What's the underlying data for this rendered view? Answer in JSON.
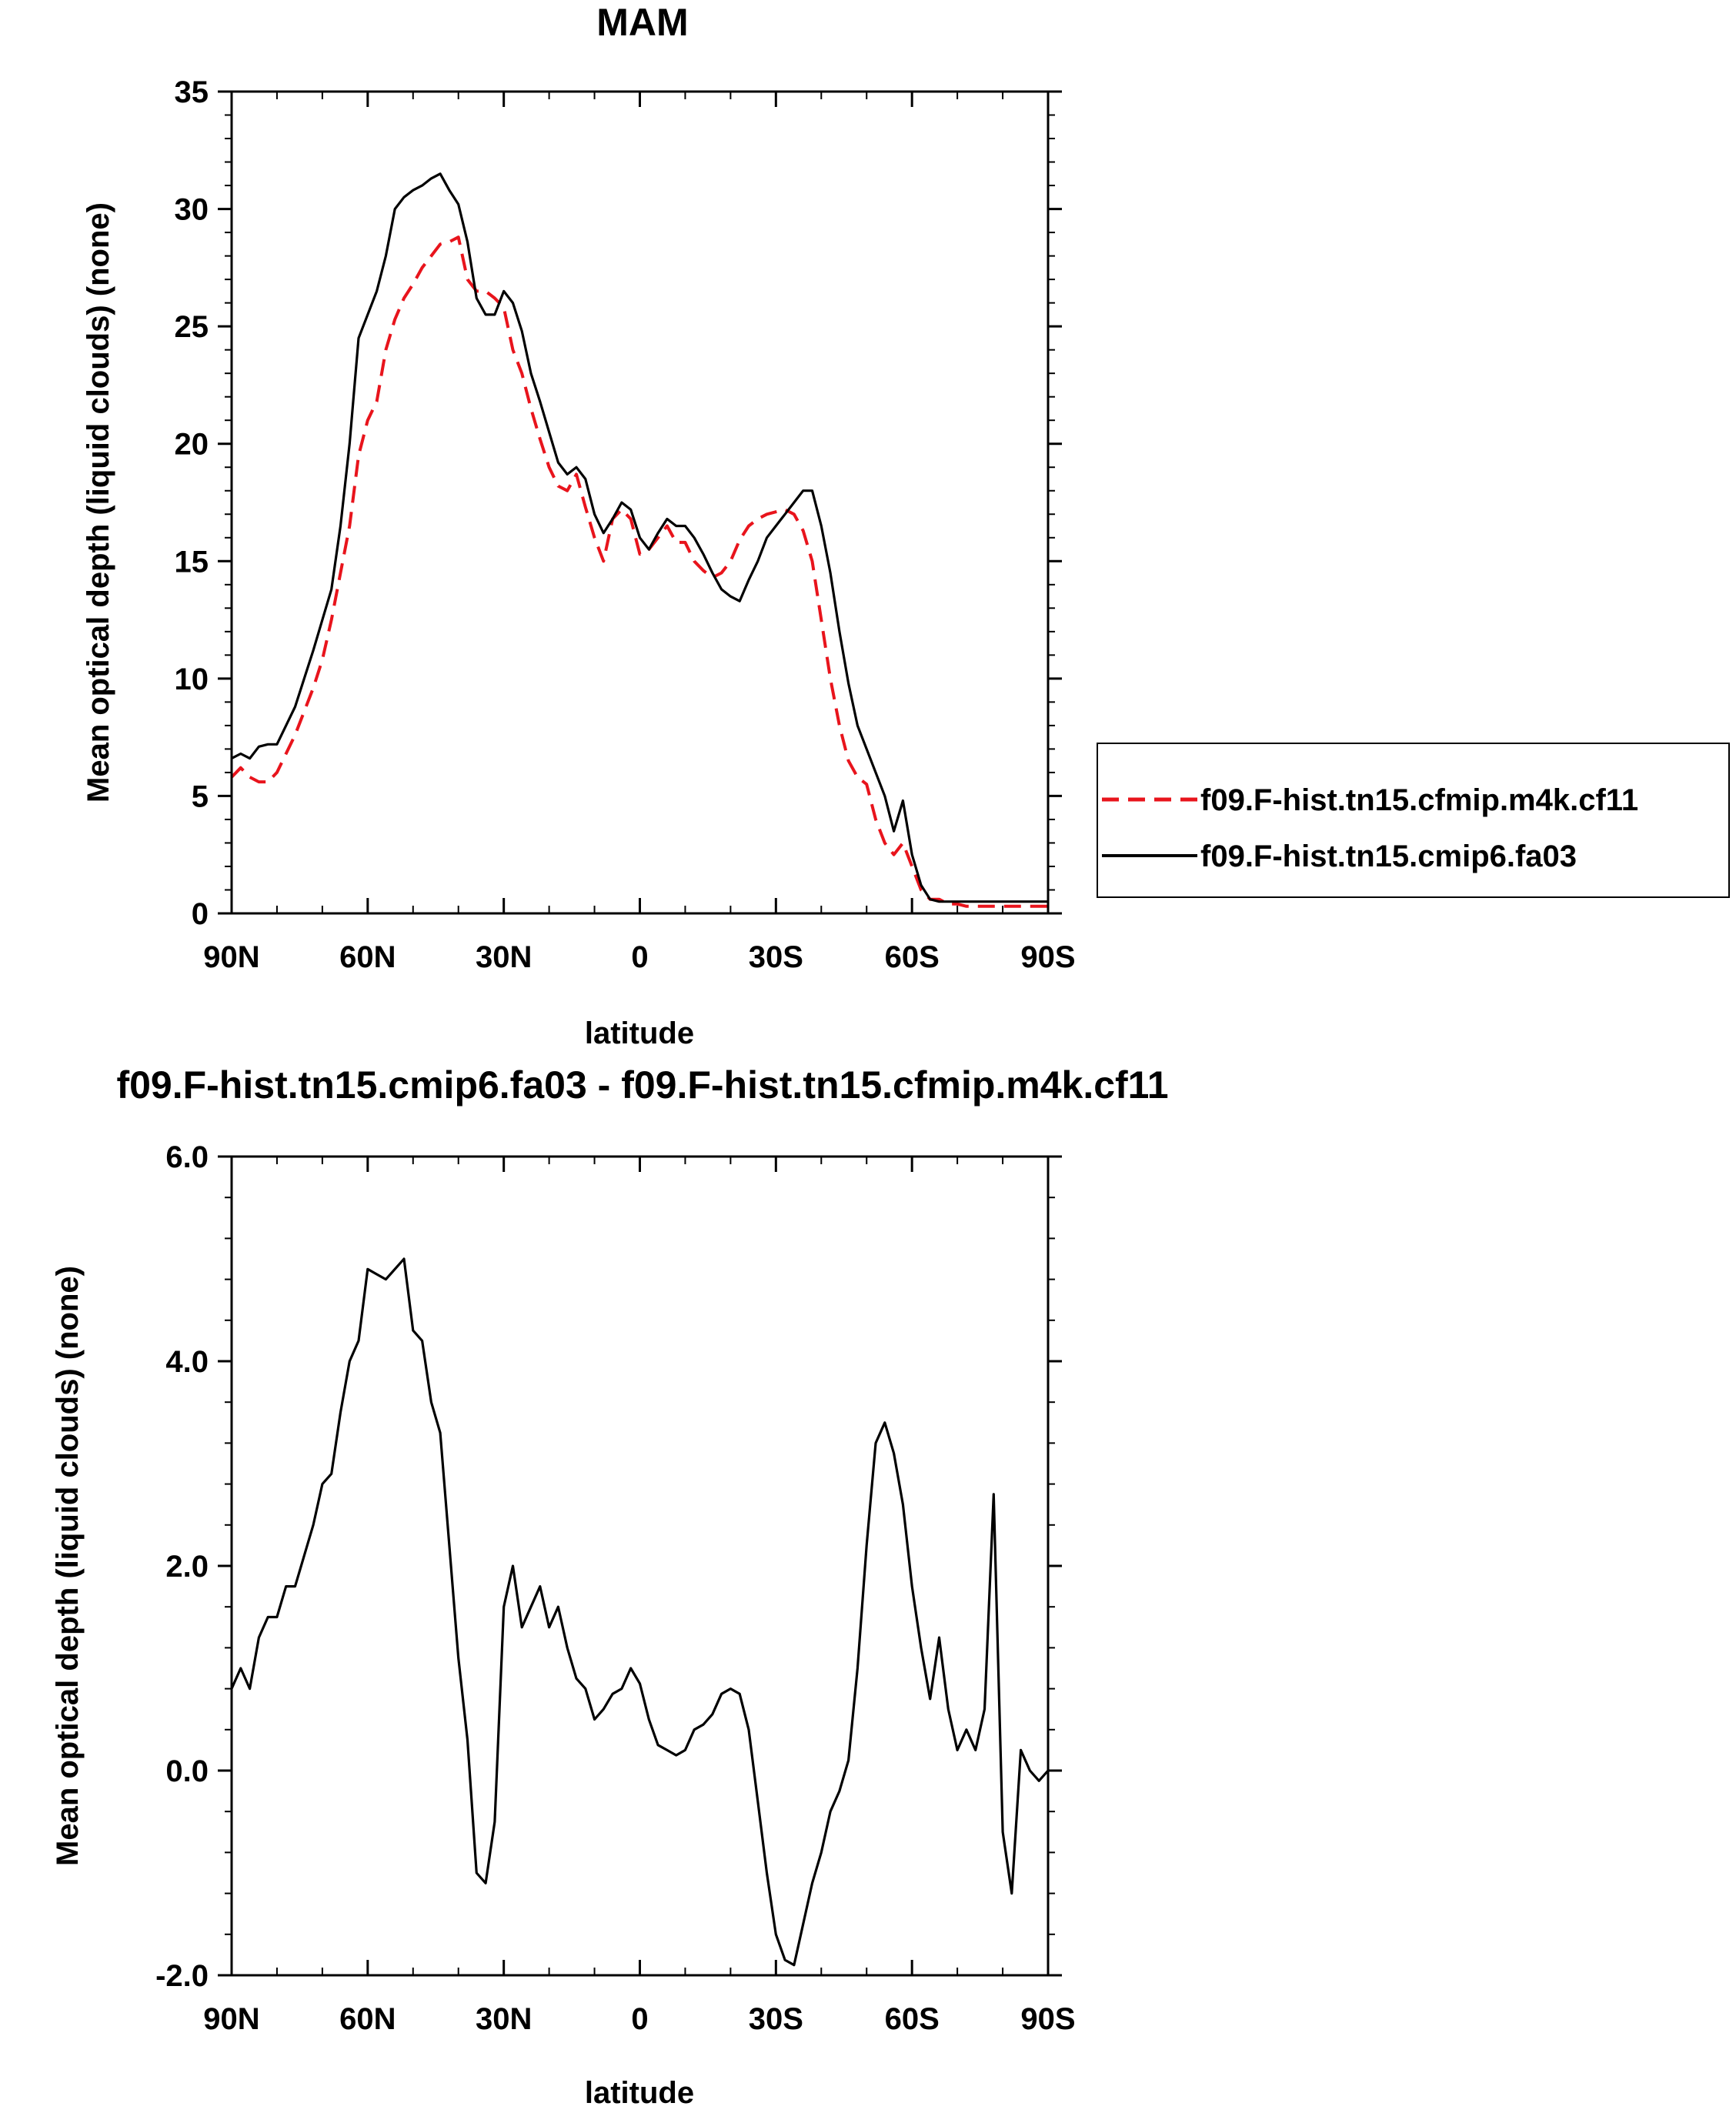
{
  "chart_data": [
    {
      "type": "line",
      "title": "MAM",
      "xlabel": "latitude",
      "ylabel": "Mean optical depth (liquid clouds) (none)",
      "xlim": [
        90,
        -90
      ],
      "ylim": [
        0,
        35
      ],
      "xticks": [
        90,
        60,
        30,
        0,
        -30,
        -60,
        -90
      ],
      "xtick_labels": [
        "90N",
        "60N",
        "30N",
        "0",
        "30S",
        "60S",
        "90S"
      ],
      "yticks": [
        0,
        5,
        10,
        15,
        20,
        25,
        30,
        35
      ],
      "ytick_labels": [
        "0",
        "5",
        "10",
        "15",
        "20",
        "25",
        "30",
        "35"
      ],
      "grid": false,
      "legend": "right",
      "series": [
        {
          "name": "f09.F-hist.tn15.cfmip.m4k.cf11",
          "color": "#e8141c",
          "dash": "dashed",
          "x": [
            90,
            88,
            86,
            84,
            82,
            80,
            78,
            76,
            74,
            72,
            70,
            68,
            66,
            64,
            62,
            60,
            58,
            56,
            54,
            52,
            50,
            48,
            46,
            44,
            42,
            40,
            38,
            36,
            34,
            32,
            30,
            28,
            26,
            24,
            22,
            20,
            18,
            16,
            14,
            12,
            10,
            8,
            6,
            4,
            2,
            0,
            -2,
            -4,
            -6,
            -8,
            -10,
            -12,
            -14,
            -16,
            -18,
            -20,
            -22,
            -24,
            -26,
            -28,
            -30,
            -32,
            -34,
            -36,
            -38,
            -40,
            -42,
            -44,
            -46,
            -48,
            -50,
            -52,
            -54,
            -56,
            -58,
            -60,
            -62,
            -64,
            -66,
            -68,
            -70,
            -72,
            -74,
            -76,
            -78,
            -80,
            -82,
            -84,
            -86,
            -88,
            -90
          ],
          "y": [
            5.8,
            6.2,
            5.8,
            5.6,
            5.6,
            6.0,
            6.8,
            7.6,
            8.6,
            9.6,
            10.8,
            12.5,
            14.5,
            16.5,
            19.5,
            21.0,
            21.8,
            24.0,
            25.3,
            26.2,
            26.8,
            27.5,
            28.0,
            28.5,
            28.6,
            28.8,
            27.0,
            26.5,
            26.5,
            26.2,
            25.8,
            24.0,
            23.0,
            21.5,
            20.2,
            19.0,
            18.2,
            18.0,
            18.7,
            17.3,
            16.0,
            15.0,
            16.8,
            17.2,
            16.8,
            15.3,
            15.5,
            16.0,
            16.5,
            15.8,
            15.8,
            15.0,
            14.6,
            14.3,
            14.5,
            15.0,
            15.9,
            16.5,
            16.8,
            17.0,
            17.1,
            17.2,
            17.0,
            16.3,
            15.0,
            12.5,
            10.0,
            8.0,
            6.5,
            5.8,
            5.5,
            4.0,
            3.0,
            2.5,
            3.0,
            2.0,
            1.0,
            0.6,
            0.6,
            0.4,
            0.4,
            0.3,
            0.3,
            0.3,
            0.3,
            0.3,
            0.3,
            0.3,
            0.3,
            0.3,
            0.3
          ]
        },
        {
          "name": "f09.F-hist.tn15.cmip6.fa03",
          "color": "#000000",
          "dash": "solid",
          "x": [
            90,
            88,
            86,
            84,
            82,
            80,
            78,
            76,
            74,
            72,
            70,
            68,
            66,
            64,
            62,
            60,
            58,
            56,
            54,
            52,
            50,
            48,
            46,
            44,
            42,
            40,
            38,
            36,
            34,
            32,
            30,
            28,
            26,
            24,
            22,
            20,
            18,
            16,
            14,
            12,
            10,
            8,
            6,
            4,
            2,
            0,
            -2,
            -4,
            -6,
            -8,
            -10,
            -12,
            -14,
            -16,
            -18,
            -20,
            -22,
            -24,
            -26,
            -28,
            -30,
            -32,
            -34,
            -36,
            -38,
            -40,
            -42,
            -44,
            -46,
            -48,
            -50,
            -52,
            -54,
            -56,
            -58,
            -60,
            -62,
            -64,
            -66,
            -68,
            -70,
            -72,
            -74,
            -76,
            -78,
            -80,
            -82,
            -84,
            -86,
            -88,
            -90
          ],
          "y": [
            6.6,
            6.8,
            6.6,
            7.1,
            7.2,
            7.2,
            8.0,
            8.8,
            10.0,
            11.2,
            12.5,
            13.8,
            16.5,
            20.0,
            24.5,
            25.5,
            26.5,
            28.0,
            30.0,
            30.5,
            30.8,
            31.0,
            31.3,
            31.5,
            30.8,
            30.2,
            28.6,
            26.2,
            25.5,
            25.5,
            26.5,
            26.0,
            24.8,
            23.0,
            21.8,
            20.5,
            19.2,
            18.7,
            19.0,
            18.5,
            17.0,
            16.2,
            16.8,
            17.5,
            17.2,
            16.0,
            15.5,
            16.2,
            16.8,
            16.5,
            16.5,
            16.0,
            15.3,
            14.5,
            13.8,
            13.5,
            13.3,
            14.2,
            15.0,
            16.0,
            16.5,
            17.0,
            17.5,
            18.0,
            18.0,
            16.5,
            14.5,
            12.0,
            9.8,
            8.0,
            7.0,
            6.0,
            5.0,
            3.5,
            4.8,
            2.5,
            1.2,
            0.6,
            0.5,
            0.5,
            0.5,
            0.5,
            0.5,
            0.5,
            0.5,
            0.5,
            0.5,
            0.5,
            0.5,
            0.5,
            0.5
          ]
        }
      ]
    },
    {
      "type": "line",
      "title": "f09.F-hist.tn15.cmip6.fa03 - f09.F-hist.tn15.cfmip.m4k.cf11",
      "xlabel": "latitude",
      "ylabel": "Mean optical depth (liquid clouds) (none)",
      "xlim": [
        90,
        -90
      ],
      "ylim": [
        -2,
        6
      ],
      "xticks": [
        90,
        60,
        30,
        0,
        -30,
        -60,
        -90
      ],
      "xtick_labels": [
        "90N",
        "60N",
        "30N",
        "0",
        "30S",
        "60S",
        "90S"
      ],
      "yticks": [
        -2,
        0,
        2,
        4,
        6
      ],
      "ytick_labels": [
        "-2.0",
        "0.0",
        "2.0",
        "4.0",
        "6.0"
      ],
      "grid": false,
      "series": [
        {
          "color": "#000000",
          "dash": "solid",
          "x": [
            90,
            88,
            86,
            84,
            82,
            80,
            78,
            76,
            74,
            72,
            70,
            68,
            66,
            64,
            62,
            60,
            58,
            56,
            54,
            52,
            50,
            48,
            46,
            44,
            42,
            40,
            38,
            36,
            34,
            32,
            30,
            28,
            26,
            24,
            22,
            20,
            18,
            16,
            14,
            12,
            10,
            8,
            6,
            4,
            2,
            0,
            -2,
            -4,
            -6,
            -8,
            -10,
            -12,
            -14,
            -16,
            -18,
            -20,
            -22,
            -24,
            -26,
            -28,
            -30,
            -32,
            -34,
            -36,
            -38,
            -40,
            -42,
            -44,
            -46,
            -48,
            -50,
            -52,
            -54,
            -56,
            -58,
            -60,
            -62,
            -64,
            -66,
            -68,
            -70,
            -72,
            -74,
            -76,
            -78,
            -80,
            -82,
            -84,
            -86,
            -88,
            -90
          ],
          "y": [
            0.8,
            1.0,
            0.8,
            1.3,
            1.5,
            1.5,
            1.8,
            1.8,
            2.1,
            2.4,
            2.8,
            2.9,
            3.5,
            4.0,
            4.2,
            4.9,
            4.85,
            4.8,
            4.9,
            5.0,
            4.3,
            4.2,
            3.6,
            3.3,
            2.2,
            1.1,
            0.3,
            -1.0,
            -1.1,
            -0.5,
            1.6,
            2.0,
            1.4,
            1.6,
            1.8,
            1.4,
            1.6,
            1.2,
            0.9,
            0.8,
            0.5,
            0.6,
            0.75,
            0.8,
            1.0,
            0.85,
            0.5,
            0.25,
            0.2,
            0.15,
            0.2,
            0.4,
            0.45,
            0.55,
            0.75,
            0.8,
            0.75,
            0.4,
            -0.3,
            -1.0,
            -1.6,
            -1.85,
            -1.9,
            -1.5,
            -1.1,
            -0.8,
            -0.4,
            -0.2,
            0.1,
            1.0,
            2.2,
            3.2,
            3.4,
            3.1,
            2.6,
            1.8,
            1.2,
            0.7,
            1.3,
            0.6,
            0.2,
            0.4,
            0.2,
            0.6,
            2.7,
            -0.6,
            -1.2,
            0.2,
            0.0,
            -0.1,
            0.0
          ]
        }
      ]
    }
  ]
}
